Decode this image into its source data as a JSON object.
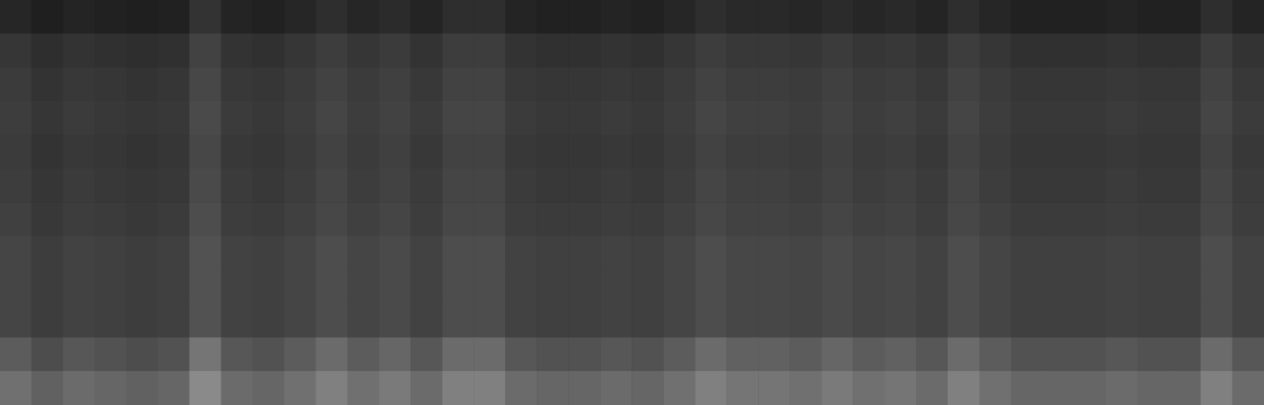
{
  "chart_data": {
    "type": "heatmap",
    "tick_labels": false,
    "grid": false,
    "colors": [
      "#000000",
      "#ffffff"
    ],
    "zlim": [
      0,
      100
    ],
    "values": [
      [
        15,
        12,
        14,
        13,
        12,
        13,
        20,
        14,
        13,
        15,
        18,
        15,
        17,
        14,
        18,
        18,
        14,
        13,
        13,
        14,
        13,
        15,
        18,
        16,
        16,
        15,
        17,
        15,
        16,
        14,
        18,
        15,
        13,
        13,
        13,
        14,
        13,
        13,
        18,
        14
      ],
      [
        21,
        18,
        20,
        19,
        18,
        19,
        26,
        20,
        19,
        21,
        24,
        21,
        23,
        20,
        24,
        24,
        20,
        19,
        19,
        20,
        19,
        21,
        24,
        22,
        22,
        21,
        23,
        21,
        22,
        20,
        24,
        21,
        19,
        19,
        19,
        20,
        19,
        19,
        24,
        20
      ],
      [
        23,
        20,
        22,
        21,
        20,
        21,
        28,
        22,
        21,
        23,
        26,
        23,
        25,
        22,
        26,
        26,
        22,
        21,
        21,
        22,
        21,
        23,
        26,
        24,
        24,
        23,
        25,
        23,
        24,
        22,
        26,
        23,
        21,
        21,
        21,
        22,
        21,
        21,
        26,
        22
      ],
      [
        24,
        21,
        23,
        22,
        21,
        22,
        29,
        23,
        22,
        24,
        27,
        24,
        26,
        23,
        27,
        27,
        23,
        22,
        22,
        23,
        22,
        24,
        27,
        25,
        25,
        24,
        26,
        24,
        25,
        23,
        27,
        24,
        22,
        22,
        22,
        23,
        22,
        22,
        27,
        23
      ],
      [
        23,
        20,
        22,
        21,
        20,
        21,
        28,
        22,
        21,
        23,
        26,
        23,
        25,
        22,
        26,
        26,
        22,
        21,
        21,
        22,
        21,
        23,
        26,
        24,
        24,
        23,
        25,
        23,
        24,
        22,
        26,
        23,
        21,
        21,
        21,
        22,
        21,
        21,
        26,
        22
      ],
      [
        24,
        21,
        23,
        22,
        21,
        22,
        29,
        23,
        22,
        24,
        27,
        24,
        26,
        23,
        27,
        27,
        23,
        22,
        22,
        23,
        22,
        24,
        27,
        25,
        25,
        24,
        26,
        24,
        25,
        23,
        27,
        24,
        22,
        22,
        22,
        23,
        22,
        22,
        27,
        23
      ],
      [
        25,
        22,
        24,
        23,
        22,
        23,
        30,
        24,
        23,
        25,
        28,
        25,
        27,
        24,
        28,
        28,
        24,
        23,
        23,
        24,
        23,
        25,
        28,
        26,
        26,
        25,
        27,
        25,
        26,
        24,
        28,
        25,
        23,
        23,
        23,
        24,
        23,
        23,
        28,
        24
      ],
      [
        27,
        24,
        26,
        25,
        24,
        25,
        32,
        26,
        25,
        27,
        30,
        27,
        29,
        26,
        30,
        30,
        26,
        25,
        25,
        26,
        25,
        27,
        30,
        28,
        28,
        27,
        29,
        27,
        28,
        26,
        30,
        27,
        25,
        25,
        25,
        26,
        25,
        25,
        30,
        26
      ],
      [
        27,
        24,
        26,
        25,
        24,
        25,
        32,
        26,
        25,
        27,
        30,
        27,
        29,
        26,
        30,
        30,
        26,
        25,
        25,
        26,
        25,
        27,
        30,
        28,
        28,
        27,
        29,
        27,
        28,
        26,
        30,
        27,
        25,
        25,
        25,
        26,
        25,
        25,
        30,
        26
      ],
      [
        27,
        24,
        26,
        25,
        24,
        25,
        32,
        26,
        25,
        27,
        30,
        27,
        29,
        26,
        30,
        30,
        26,
        25,
        25,
        26,
        25,
        27,
        30,
        28,
        28,
        27,
        29,
        27,
        28,
        26,
        30,
        27,
        25,
        25,
        25,
        26,
        25,
        25,
        30,
        26
      ],
      [
        36,
        30,
        34,
        32,
        30,
        32,
        46,
        34,
        32,
        36,
        42,
        36,
        40,
        34,
        42,
        42,
        34,
        32,
        32,
        34,
        32,
        36,
        42,
        38,
        38,
        36,
        40,
        36,
        38,
        34,
        42,
        36,
        32,
        32,
        32,
        34,
        32,
        32,
        42,
        34
      ],
      [
        44,
        38,
        42,
        40,
        38,
        40,
        54,
        42,
        40,
        44,
        50,
        44,
        48,
        42,
        50,
        50,
        42,
        40,
        40,
        42,
        40,
        44,
        50,
        46,
        46,
        44,
        48,
        44,
        46,
        42,
        50,
        44,
        40,
        40,
        40,
        42,
        40,
        40,
        50,
        42
      ]
    ]
  }
}
